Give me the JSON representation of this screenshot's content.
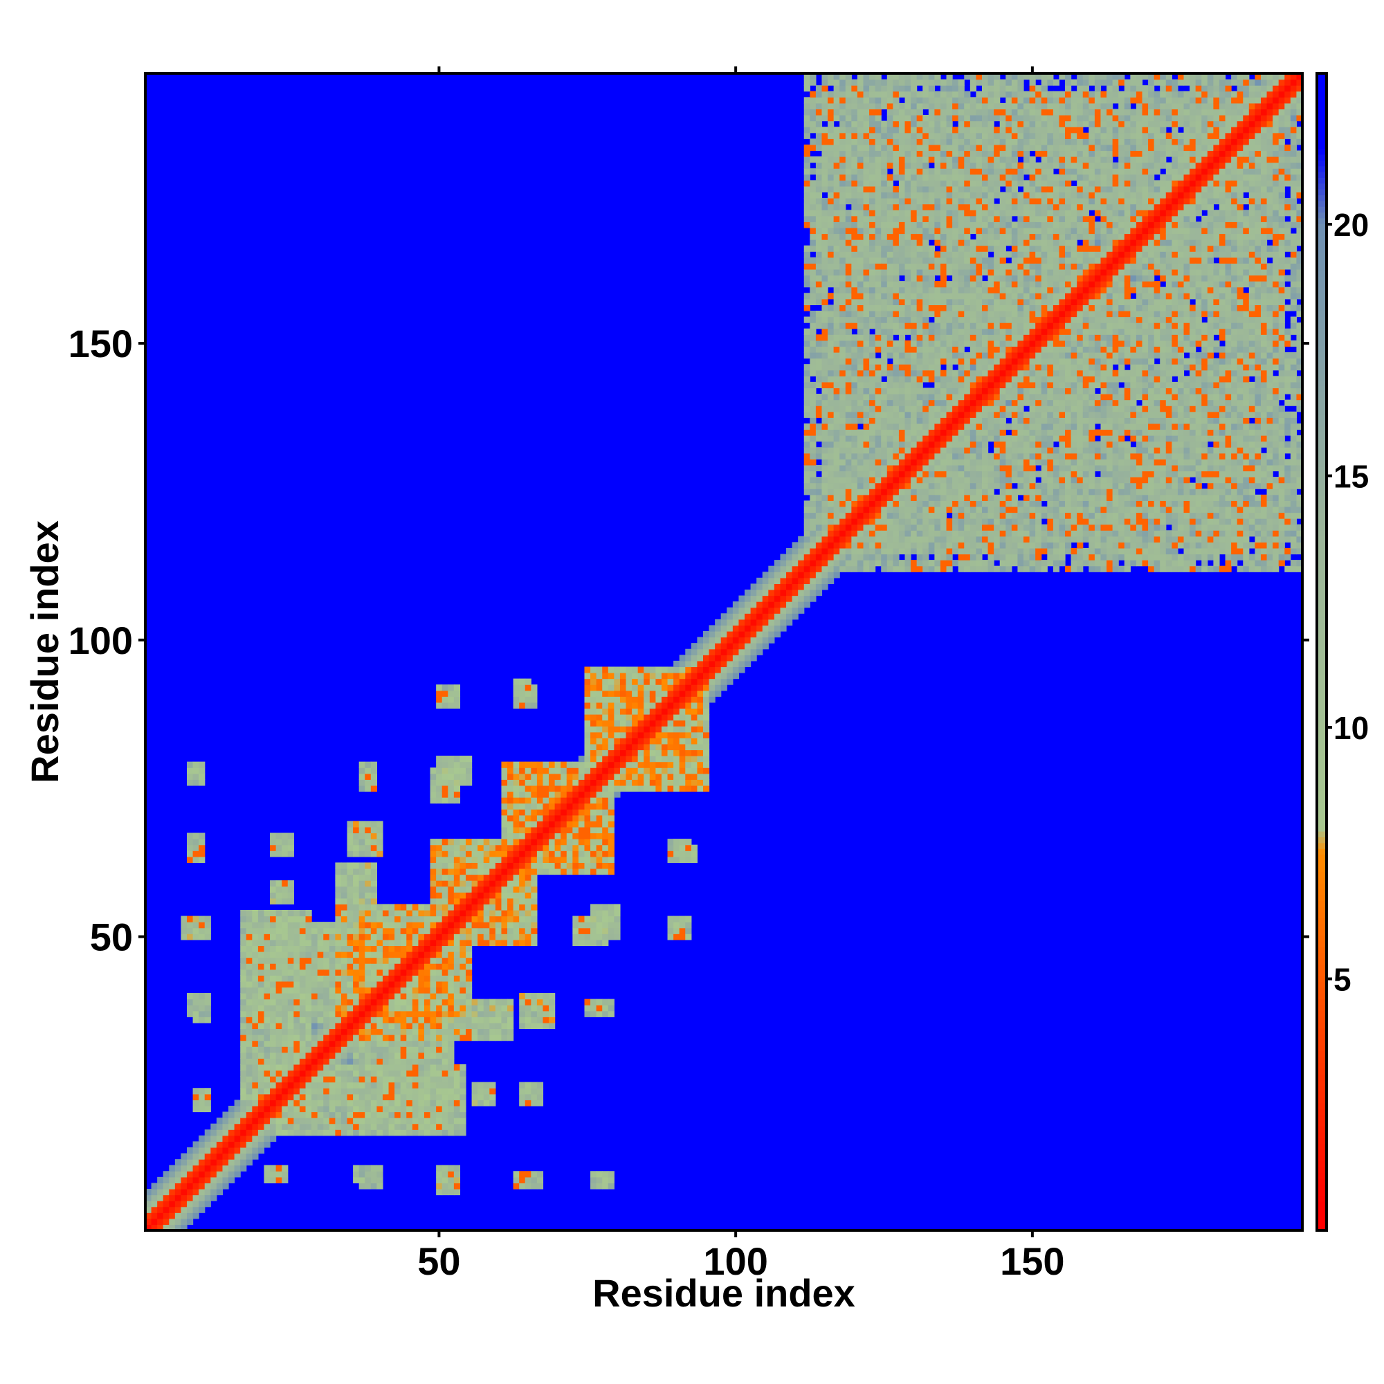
{
  "chart_data": {
    "type": "heatmap",
    "title": "",
    "xlabel": "Residue index",
    "ylabel": "Residue index",
    "x_range": [
      1,
      195
    ],
    "y_range": [
      1,
      195
    ],
    "x_ticks": [
      50,
      100,
      150
    ],
    "y_ticks": [
      50,
      100,
      150
    ],
    "colorbar": {
      "ticks": [
        5,
        10,
        15,
        20
      ],
      "range": [
        0,
        23
      ],
      "stops": [
        {
          "value": 0.5,
          "color": "#ff0000"
        },
        {
          "value": 4,
          "color": "#ff4400"
        },
        {
          "value": 7.5,
          "color": "#ff8c00"
        },
        {
          "value": 8,
          "color": "#a8c890"
        },
        {
          "value": 14,
          "color": "#9bb59a"
        },
        {
          "value": 20,
          "color": "#6f90b3"
        },
        {
          "value": 21.5,
          "color": "#0000ff"
        }
      ]
    },
    "background_value": 23,
    "diagonal_band": {
      "core": 2,
      "halfwidth": 6
    },
    "contact_regions": [
      {
        "x": [
          115,
          195
        ],
        "y": [
          112,
          192
        ],
        "value": 14.5,
        "density": 0.6
      },
      {
        "x": [
          17,
          28
        ],
        "y": [
          20,
          54
        ],
        "value": 11.5
      },
      {
        "x": [
          33,
          52
        ],
        "y": [
          36,
          55
        ],
        "value": 9.5
      },
      {
        "x": [
          36,
          52
        ],
        "y": [
          18,
          33
        ],
        "value": 11.5
      },
      {
        "x": [
          49,
          66
        ],
        "y": [
          49,
          66
        ],
        "value": 9.5
      },
      {
        "x": [
          61,
          78
        ],
        "y": [
          62,
          79
        ],
        "value": 9.5
      },
      {
        "x": [
          75,
          95
        ],
        "y": [
          75,
          95
        ],
        "value": 9.5
      },
      {
        "x": [
          56,
          62
        ],
        "y": [
          33,
          39
        ],
        "value": 11
      },
      {
        "x": [
          35,
          40
        ],
        "y": [
          64,
          69
        ],
        "value": 11
      },
      {
        "x": [
          50,
          55
        ],
        "y": [
          76,
          80
        ],
        "value": 11
      },
      {
        "x": [
          73,
          78
        ],
        "y": [
          49,
          53
        ],
        "value": 11
      },
      {
        "x": [
          7,
          10
        ],
        "y": [
          50,
          53
        ],
        "value": 11
      },
      {
        "x": [
          22,
          25
        ],
        "y": [
          64,
          67
        ],
        "value": 11
      },
      {
        "x": [
          56,
          59
        ],
        "y": [
          22,
          25
        ],
        "value": 11
      },
      {
        "x": [
          50,
          53
        ],
        "y": [
          8,
          11
        ],
        "value": 11
      },
      {
        "x": [
          63,
          65
        ],
        "y": [
          8,
          10
        ],
        "value": 12
      },
      {
        "x": [
          76,
          78
        ],
        "y": [
          8,
          10
        ],
        "value": 12
      },
      {
        "x": [
          37,
          40
        ],
        "y": [
          8,
          11
        ],
        "value": 12
      },
      {
        "x": [
          21,
          24
        ],
        "y": [
          9,
          11
        ],
        "value": 12
      },
      {
        "x": [
          9,
          11
        ],
        "y": [
          21,
          24
        ],
        "value": 12
      },
      {
        "x": [
          9,
          11
        ],
        "y": [
          36,
          39
        ],
        "value": 12
      },
      {
        "x": [
          75,
          78
        ],
        "y": [
          37,
          39
        ],
        "value": 12
      },
      {
        "x": [
          89,
          92
        ],
        "y": [
          63,
          66
        ],
        "value": 12
      },
      {
        "x": [
          89,
          91
        ],
        "y": [
          50,
          53
        ],
        "value": 12
      },
      {
        "x": [
          63,
          65
        ],
        "y": [
          90,
          93
        ],
        "value": 12
      },
      {
        "x": [
          50,
          53
        ],
        "y": [
          90,
          92
        ],
        "value": 12
      },
      {
        "x": [
          37,
          39
        ],
        "y": [
          76,
          79
        ],
        "value": 12
      },
      {
        "x": [
          8,
          10
        ],
        "y": [
          77,
          79
        ],
        "value": 12
      },
      {
        "x": [
          8,
          10
        ],
        "y": [
          64,
          67
        ],
        "value": 12
      }
    ]
  }
}
